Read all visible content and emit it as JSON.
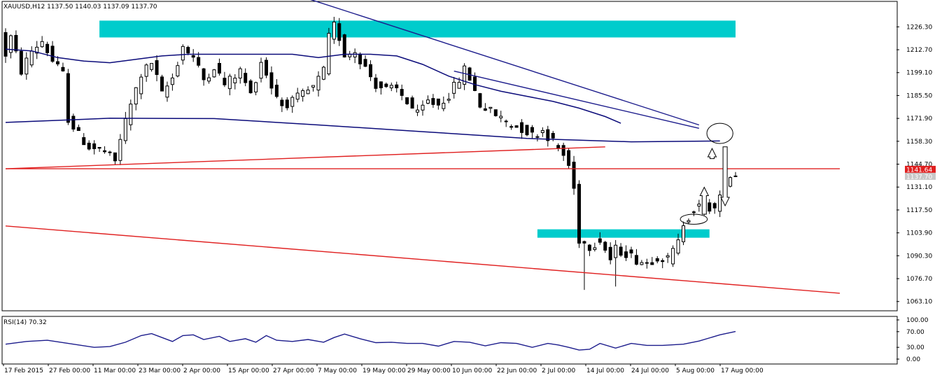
{
  "header": {
    "symbol_text": "XAUUSD,H12  1137.50 1140.03 1137.09 1137.70",
    "rsi_text": "RSI(14) 70.32"
  },
  "colors": {
    "candle": "#000000",
    "ma": "#0b0b7a",
    "trend_blue": "#1c1c8c",
    "trend_red": "#e02020",
    "zone": "#00cccc",
    "rsi_line": "#1c1c8c",
    "price_label_bg": "#e02020",
    "current_label_bg": "#c8c8c8"
  },
  "chart_data": [
    {
      "type": "candlestick",
      "title": "XAUUSD,H12",
      "last_bar": {
        "open": 1137.5,
        "high": 1140.03,
        "low": 1137.09,
        "close": 1137.7
      },
      "ylim": [
        1058,
        1241
      ],
      "x_tick_labels": [
        "17 Feb 2015",
        "27 Feb 00:00",
        "11 Mar 00:00",
        "23 Mar 00:00",
        "2 Apr 00:00",
        "15 Apr 00:00",
        "27 Apr 00:00",
        "7 May 00:00",
        "19 May 00:00",
        "29 May 00:00",
        "10 Jun 00:00",
        "22 Jun 00:00",
        "2 Jul 00:00",
        "14 Jul 00:00",
        "24 Jul 00:00",
        "5 Aug 00:00",
        "17 Aug 00:00"
      ],
      "y_tick_labels": [
        "1226.30",
        "1212.70",
        "1199.10",
        "1185.50",
        "1171.90",
        "1158.30",
        "1144.70",
        "1131.10",
        "1117.50",
        "1103.90",
        "1090.30",
        "1076.70",
        "1063.10"
      ],
      "y_tick_values": [
        1226.3,
        1212.7,
        1199.1,
        1185.5,
        1171.9,
        1158.3,
        1144.7,
        1131.1,
        1117.5,
        1103.9,
        1090.3,
        1076.7,
        1063.1
      ],
      "price_labels": [
        {
          "text": "1141.64",
          "value": 1141.64,
          "style": "red"
        },
        {
          "text": "1137.70",
          "value": 1137.7,
          "style": "grey"
        }
      ],
      "anchors": [
        {
          "x": 0,
          "v": 1222
        },
        {
          "x": 1,
          "v": 1210
        },
        {
          "x": 2,
          "v": 1220
        },
        {
          "x": 4,
          "v": 1200
        },
        {
          "x": 6,
          "v": 1212
        },
        {
          "x": 8,
          "v": 1218
        },
        {
          "x": 10,
          "v": 1206
        },
        {
          "x": 12,
          "v": 1198
        },
        {
          "x": 13,
          "v": 1172
        },
        {
          "x": 15,
          "v": 1162
        },
        {
          "x": 17,
          "v": 1155
        },
        {
          "x": 20,
          "v": 1152
        },
        {
          "x": 22,
          "v": 1146
        },
        {
          "x": 23,
          "v": 1160
        },
        {
          "x": 25,
          "v": 1180
        },
        {
          "x": 27,
          "v": 1198
        },
        {
          "x": 29,
          "v": 1205
        },
        {
          "x": 30,
          "v": 1196
        },
        {
          "x": 31,
          "v": 1186
        },
        {
          "x": 33,
          "v": 1196
        },
        {
          "x": 35,
          "v": 1215
        },
        {
          "x": 37,
          "v": 1208
        },
        {
          "x": 39,
          "v": 1195
        },
        {
          "x": 41,
          "v": 1203
        },
        {
          "x": 43,
          "v": 1192
        },
        {
          "x": 46,
          "v": 1200
        },
        {
          "x": 48,
          "v": 1186
        },
        {
          "x": 50,
          "v": 1206
        },
        {
          "x": 52,
          "v": 1191
        },
        {
          "x": 54,
          "v": 1180
        },
        {
          "x": 56,
          "v": 1182
        },
        {
          "x": 58,
          "v": 1186
        },
        {
          "x": 60,
          "v": 1190
        },
        {
          "x": 62,
          "v": 1200
        },
        {
          "x": 63,
          "v": 1220
        },
        {
          "x": 64,
          "v": 1227
        },
        {
          "x": 65,
          "v": 1220
        },
        {
          "x": 66,
          "v": 1210
        },
        {
          "x": 68,
          "v": 1212
        },
        {
          "x": 70,
          "v": 1202
        },
        {
          "x": 72,
          "v": 1192
        },
        {
          "x": 74,
          "v": 1189
        },
        {
          "x": 76,
          "v": 1189
        },
        {
          "x": 78,
          "v": 1182
        },
        {
          "x": 80,
          "v": 1174
        },
        {
          "x": 82,
          "v": 1182
        },
        {
          "x": 84,
          "v": 1180
        },
        {
          "x": 86,
          "v": 1186
        },
        {
          "x": 88,
          "v": 1195
        },
        {
          "x": 89,
          "v": 1201
        },
        {
          "x": 90,
          "v": 1196
        },
        {
          "x": 92,
          "v": 1180
        },
        {
          "x": 94,
          "v": 1176
        },
        {
          "x": 96,
          "v": 1172
        },
        {
          "x": 98,
          "v": 1168
        },
        {
          "x": 100,
          "v": 1166
        },
        {
          "x": 102,
          "v": 1162
        },
        {
          "x": 104,
          "v": 1165
        },
        {
          "x": 106,
          "v": 1158
        },
        {
          "x": 108,
          "v": 1150
        },
        {
          "x": 109,
          "v": 1144
        },
        {
          "x": 110,
          "v": 1130
        },
        {
          "x": 111,
          "v": 1100
        },
        {
          "x": 113,
          "v": 1096
        },
        {
          "x": 115,
          "v": 1100
        },
        {
          "x": 117,
          "v": 1088
        },
        {
          "x": 118,
          "v": 1094
        },
        {
          "x": 120,
          "v": 1092
        },
        {
          "x": 122,
          "v": 1088
        },
        {
          "x": 124,
          "v": 1086
        },
        {
          "x": 126,
          "v": 1090
        },
        {
          "x": 128,
          "v": 1088
        },
        {
          "x": 130,
          "v": 1098
        },
        {
          "x": 131,
          "v": 1110
        },
        {
          "x": 133,
          "v": 1118
        },
        {
          "x": 135,
          "v": 1120
        },
        {
          "x": 137,
          "v": 1118
        },
        {
          "x": 139,
          "v": 1130
        },
        {
          "x": 140,
          "v": 1138
        }
      ],
      "moving_averages": [
        {
          "points": [
            [
              0,
              1213
            ],
            [
              5,
              1212
            ],
            [
              10,
              1208
            ],
            [
              15,
              1206
            ],
            [
              20,
              1205
            ],
            [
              25,
              1207
            ],
            [
              30,
              1209
            ],
            [
              35,
              1210
            ],
            [
              40,
              1210
            ],
            [
              45,
              1210
            ],
            [
              50,
              1210
            ],
            [
              55,
              1210
            ],
            [
              60,
              1208
            ],
            [
              65,
              1210
            ],
            [
              70,
              1210
            ],
            [
              75,
              1209
            ],
            [
              80,
              1204
            ],
            [
              85,
              1197
            ],
            [
              90,
              1192
            ],
            [
              95,
              1188
            ],
            [
              100,
              1185
            ],
            [
              105,
              1182
            ],
            [
              110,
              1178
            ],
            [
              115,
              1173
            ],
            [
              118,
              1169
            ]
          ]
        },
        {
          "points": [
            [
              0,
              1169.5
            ],
            [
              20,
              1172
            ],
            [
              40,
              1171.8
            ],
            [
              60,
              1168
            ],
            [
              80,
              1164
            ],
            [
              100,
              1160
            ],
            [
              120,
              1158
            ],
            [
              137,
              1158.5
            ]
          ]
        }
      ],
      "trendlines": [
        {
          "color": "trend_blue",
          "from": [
            55,
            1246
          ],
          "to": [
            133,
            1168
          ]
        },
        {
          "color": "trend_blue",
          "from": [
            86,
            1200
          ],
          "to": [
            133,
            1166
          ]
        },
        {
          "color": "trend_red",
          "from": [
            0,
            1142
          ],
          "to": [
            115,
            1155
          ]
        },
        {
          "color": "trend_red",
          "from": [
            0,
            1142
          ],
          "to": [
            160,
            1142
          ]
        },
        {
          "color": "trend_red",
          "from": [
            0,
            1108
          ],
          "to": [
            160,
            1068
          ]
        }
      ],
      "zones": [
        {
          "from": [
            18,
            1230
          ],
          "to": [
            140,
            1220
          ]
        },
        {
          "from": [
            102,
            1106
          ],
          "to": [
            135,
            1101
          ]
        }
      ],
      "ellipses": [
        {
          "center": [
            137,
            1163
          ],
          "radius_x": 2.5,
          "radius_y": 6
        },
        {
          "center": [
            132,
            1112
          ],
          "radius_x": 2.6,
          "radius_y": 3
        }
      ],
      "arrows": [
        {
          "direction": "up",
          "x": 134,
          "from": 1115,
          "to": 1131
        },
        {
          "direction": "up",
          "x": 135.5,
          "from": 1148,
          "to": 1154
        },
        {
          "direction": "down",
          "x": 138,
          "from": 1155,
          "to": 1120
        }
      ]
    },
    {
      "type": "line",
      "title": "RSI(14)",
      "last_value": 70.32,
      "ylim": [
        0,
        100
      ],
      "y_tick_labels": [
        "100.00",
        "70.00",
        "30.00",
        "0.00"
      ],
      "y_tick_values": [
        100,
        70,
        30,
        0
      ],
      "x": [
        0,
        4,
        8,
        13,
        17,
        20,
        23,
        26,
        28,
        30,
        32,
        34,
        36,
        38,
        41,
        43,
        46,
        48,
        50,
        52,
        55,
        58,
        61,
        63,
        65,
        68,
        71,
        74,
        77,
        80,
        83,
        86,
        89,
        92,
        95,
        98,
        101,
        104,
        106,
        108,
        110,
        112,
        114,
        117,
        120,
        123,
        126,
        130,
        133,
        137,
        140
      ],
      "values": [
        38,
        45,
        48,
        38,
        30,
        32,
        43,
        60,
        65,
        55,
        45,
        60,
        62,
        50,
        58,
        45,
        52,
        43,
        60,
        48,
        45,
        50,
        43,
        55,
        64,
        52,
        42,
        43,
        40,
        40,
        33,
        45,
        43,
        34,
        42,
        40,
        30,
        40,
        36,
        30,
        23,
        25,
        40,
        28,
        40,
        35,
        35,
        38,
        46,
        62,
        70.32
      ]
    }
  ]
}
